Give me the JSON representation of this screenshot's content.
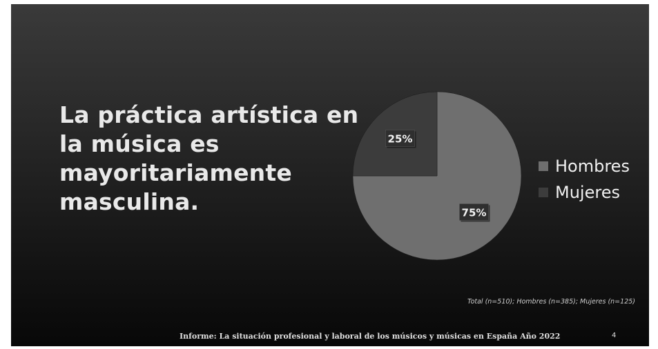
{
  "title_lines": [
    "La práctica artística en",
    "la música es",
    "mayoritariamente",
    "masculina."
  ],
  "chart_data": {
    "type": "pie",
    "slices": [
      {
        "label": "Hombres",
        "value": 75,
        "data_label": "75%",
        "color": "#6f6f6f"
      },
      {
        "label": "Mujeres",
        "value": 25,
        "data_label": "25%",
        "color": "#3c3c3c"
      }
    ],
    "legend_position": "right"
  },
  "note": "Total (n=510); Hombres (n=385); Mujeres (n=125)",
  "footer": "Informe: La situación profesional y laboral de los músicos y músicas en España Año 2022",
  "page_number": "4"
}
